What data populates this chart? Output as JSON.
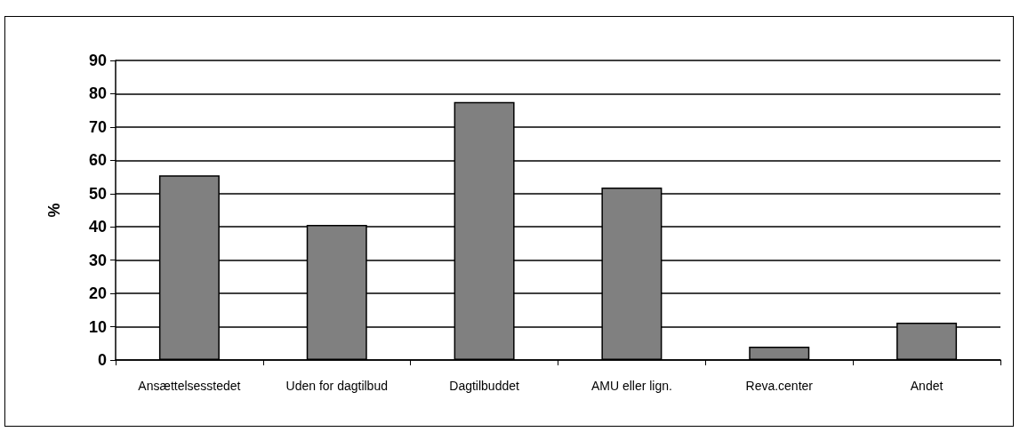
{
  "chart_data": {
    "type": "bar",
    "ylabel": "%",
    "categories": [
      "Ansættelsesstedet",
      "Uden for dagtilbud",
      "Dagtilbuddet",
      "AMU eller lign.",
      "Reva.center",
      "Andet"
    ],
    "values": [
      55.5,
      40.6,
      77.5,
      51.8,
      4,
      11.2
    ],
    "color": "#808080",
    "ylim": [
      0,
      90
    ],
    "yticks": [
      0,
      10,
      20,
      30,
      40,
      50,
      60,
      70,
      80,
      90
    ],
    "grid": "y"
  }
}
